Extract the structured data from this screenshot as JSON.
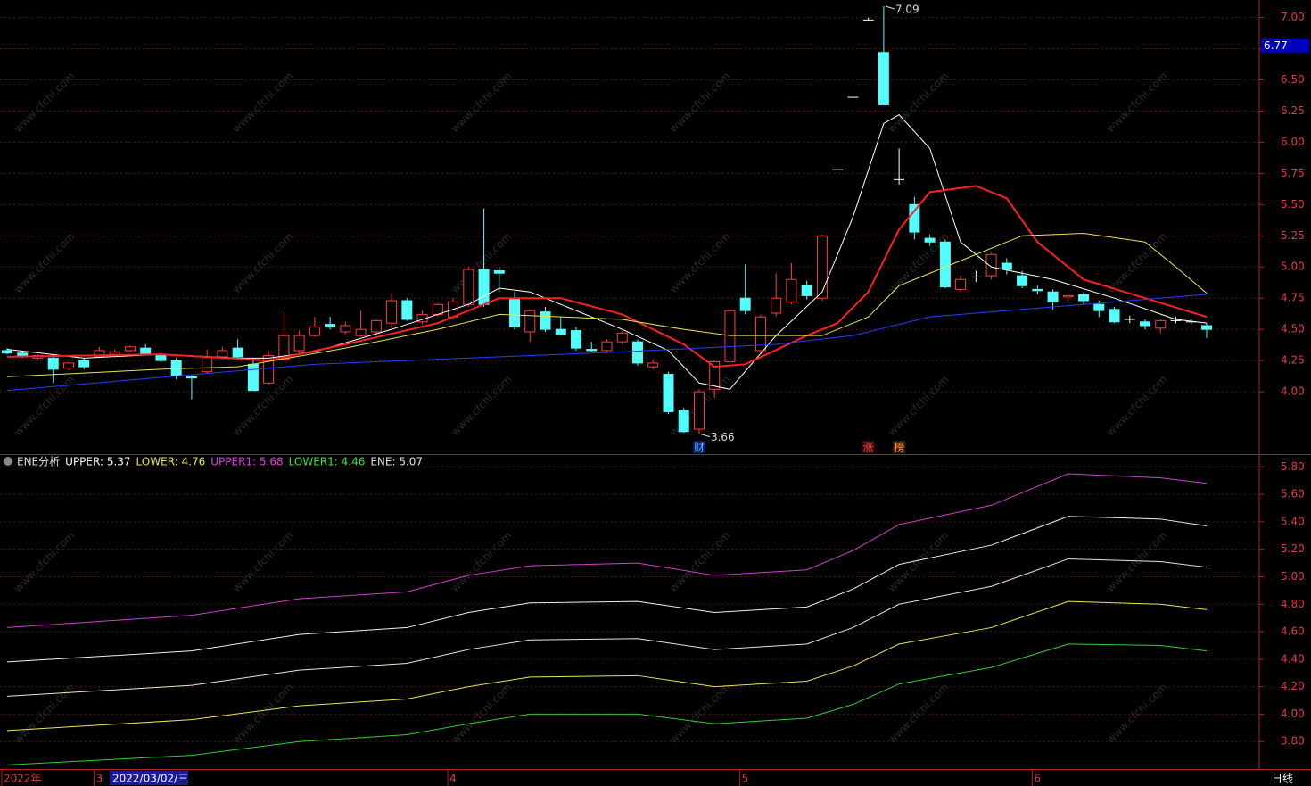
{
  "chart_data": [
    {
      "type": "candlestick",
      "ylim": [
        3.5,
        7.14
      ],
      "yticks": [
        {
          "value": 4,
          "label": "4.00"
        },
        {
          "value": 4.25,
          "label": "4.25"
        },
        {
          "value": 4.5,
          "label": "4.50"
        },
        {
          "value": 4.75,
          "label": "4.75"
        },
        {
          "value": 5,
          "label": "5.00"
        },
        {
          "value": 5.25,
          "label": "5.25"
        },
        {
          "value": 5.5,
          "label": "5.50"
        },
        {
          "value": 5.75,
          "label": "5.75"
        },
        {
          "value": 6,
          "label": "6.00"
        },
        {
          "value": 6.25,
          "label": "6.25"
        },
        {
          "value": 6.5,
          "label": "6.50"
        },
        {
          "value": 6.75,
          "label": "6.75"
        },
        {
          "value": 7,
          "label": "7.00"
        }
      ],
      "grid": true,
      "up_color": "#ff3c3c",
      "down_color": "#54fcfc",
      "flat_color": "#ffffff",
      "open": [
        4.33,
        4.31,
        4.27,
        4.27,
        4.19,
        4.25,
        4.28,
        4.3,
        4.33,
        4.35,
        4.29,
        4.25,
        4.12,
        4.16,
        4.28,
        4.35,
        4.22,
        4.07,
        4.26,
        4.33,
        4.45,
        4.54,
        4.48,
        4.45,
        4.48,
        4.55,
        4.73,
        4.56,
        4.62,
        4.6,
        4.7,
        4.98,
        4.97,
        4.74,
        4.48,
        4.64,
        4.5,
        4.49,
        4.34,
        4.33,
        4.4,
        4.4,
        4.2,
        4.14,
        3.85,
        3.7,
        4.02,
        4.24,
        4.75,
        4.33,
        4.63,
        4.72,
        4.85,
        4.75,
        5.78,
        6.36,
        6.98,
        6.72,
        5.7,
        5.5,
        5.23,
        5.2,
        4.82,
        4.92,
        4.93,
        5.03,
        4.93,
        4.82,
        4.8,
        4.76,
        4.78,
        4.7,
        4.66,
        4.58,
        4.56,
        4.51,
        4.57,
        4.56,
        4.53
      ],
      "high": [
        4.35,
        4.33,
        4.3,
        4.28,
        4.24,
        4.27,
        4.36,
        4.34,
        4.37,
        4.38,
        4.31,
        4.27,
        4.13,
        4.34,
        4.36,
        4.42,
        4.27,
        4.33,
        4.64,
        4.49,
        4.6,
        4.6,
        4.56,
        4.65,
        4.58,
        4.79,
        4.75,
        4.65,
        4.71,
        4.75,
        5.0,
        5.47,
        5.0,
        4.8,
        4.66,
        4.68,
        4.6,
        4.52,
        4.4,
        4.42,
        4.49,
        4.42,
        4.26,
        4.16,
        3.87,
        4.02,
        4.25,
        4.65,
        5.02,
        4.62,
        4.95,
        5.03,
        4.89,
        5.26,
        5.78,
        6.36,
        7.0,
        7.09,
        5.95,
        5.56,
        5.26,
        5.22,
        4.93,
        4.97,
        5.11,
        5.07,
        4.97,
        4.85,
        4.82,
        4.79,
        4.8,
        4.73,
        4.68,
        4.61,
        4.58,
        4.58,
        4.6,
        4.58,
        4.55
      ],
      "low": [
        4.3,
        4.27,
        4.26,
        4.07,
        4.17,
        4.18,
        4.27,
        4.29,
        4.32,
        4.29,
        4.24,
        4.1,
        3.94,
        4.15,
        4.26,
        4.27,
        4.01,
        4.05,
        4.24,
        4.31,
        4.44,
        4.5,
        4.46,
        4.44,
        4.46,
        4.52,
        4.57,
        4.54,
        4.6,
        4.58,
        4.68,
        4.68,
        4.8,
        4.5,
        4.4,
        4.48,
        4.45,
        4.33,
        4.32,
        4.31,
        4.38,
        4.21,
        4.18,
        3.82,
        3.67,
        3.66,
        3.95,
        4.22,
        4.62,
        4.3,
        4.6,
        4.7,
        4.74,
        4.73,
        5.78,
        6.36,
        6.98,
        6.3,
        5.66,
        5.22,
        5.17,
        4.83,
        4.8,
        4.88,
        4.9,
        4.94,
        4.83,
        4.78,
        4.66,
        4.73,
        4.7,
        4.6,
        4.55,
        4.55,
        4.5,
        4.47,
        4.55,
        4.54,
        4.43
      ],
      "close": [
        4.31,
        4.28,
        4.29,
        4.18,
        4.23,
        4.2,
        4.33,
        4.32,
        4.36,
        4.3,
        4.25,
        4.13,
        4.11,
        4.28,
        4.33,
        4.28,
        4.01,
        4.29,
        4.45,
        4.45,
        4.52,
        4.52,
        4.53,
        4.5,
        4.57,
        4.73,
        4.58,
        4.62,
        4.7,
        4.72,
        4.98,
        4.7,
        4.95,
        4.52,
        4.65,
        4.5,
        4.46,
        4.35,
        4.33,
        4.4,
        4.47,
        4.23,
        4.23,
        3.84,
        3.68,
        4.0,
        4.24,
        4.65,
        4.65,
        4.6,
        4.75,
        4.9,
        4.77,
        5.25,
        5.78,
        6.36,
        6.98,
        6.3,
        5.7,
        5.28,
        5.2,
        4.84,
        4.9,
        4.92,
        5.1,
        4.98,
        4.85,
        4.81,
        4.72,
        4.77,
        4.73,
        4.65,
        4.56,
        4.58,
        4.53,
        4.57,
        4.57,
        4.56,
        4.5
      ],
      "series": [
        {
          "color": "#ffffff",
          "width": 1,
          "x": [
            0,
            5,
            10,
            15,
            17,
            20,
            25,
            30,
            32,
            34,
            36,
            40,
            43,
            45,
            47,
            50,
            53,
            55,
            57,
            58,
            60,
            62,
            64,
            68,
            72,
            76,
            78
          ],
          "values": [
            4.34,
            4.27,
            4.3,
            4.27,
            4.27,
            4.32,
            4.5,
            4.7,
            4.83,
            4.8,
            4.7,
            4.5,
            4.33,
            4.07,
            4.02,
            4.45,
            4.8,
            5.4,
            6.15,
            6.22,
            5.95,
            5.2,
            5.0,
            4.9,
            4.75,
            4.58,
            4.55
          ]
        },
        {
          "color": "#ff2020",
          "width": 2,
          "x": [
            0,
            10,
            17,
            22,
            28,
            32,
            36,
            40,
            44,
            46,
            48,
            52,
            54,
            56,
            58,
            60,
            63,
            65,
            67,
            70,
            74,
            78
          ],
          "values": [
            4.28,
            4.3,
            4.25,
            4.38,
            4.55,
            4.75,
            4.75,
            4.62,
            4.38,
            4.2,
            4.22,
            4.45,
            4.55,
            4.8,
            5.3,
            5.6,
            5.65,
            5.55,
            5.2,
            4.9,
            4.75,
            4.6
          ]
        },
        {
          "color": "#e6e650",
          "width": 1,
          "x": [
            0,
            10,
            15,
            22,
            28,
            32,
            36,
            40,
            44,
            47,
            50,
            53,
            56,
            58,
            62,
            66,
            70,
            74,
            76,
            78
          ],
          "values": [
            4.12,
            4.18,
            4.2,
            4.35,
            4.5,
            4.62,
            4.6,
            4.58,
            4.5,
            4.45,
            4.45,
            4.45,
            4.6,
            4.85,
            5.05,
            5.25,
            5.27,
            5.2,
            5.0,
            4.79
          ]
        },
        {
          "color": "#2040ff",
          "width": 1,
          "x": [
            0,
            20,
            40,
            50,
            55,
            60,
            70,
            78
          ],
          "values": [
            4.01,
            4.22,
            4.32,
            4.38,
            4.45,
            4.6,
            4.7,
            4.78
          ]
        }
      ],
      "annotations": [
        {
          "x": 57,
          "y": 7.09
        },
        {
          "x": 45,
          "y": 3.66
        }
      ],
      "events": [
        {
          "text": "财",
          "x": 45,
          "color": "#5ab4ff",
          "bg": "#0a1a6a"
        },
        {
          "text": "涨",
          "x": 56,
          "color": "#ff5050",
          "bg": "#3a0a0a"
        },
        {
          "text": "榜",
          "x": 58,
          "color": "#ffa040",
          "bg": "#3a1a0a"
        }
      ],
      "price_tag": 6.77,
      "xticks": [
        {
          "value": 0,
          "label": "2022年"
        },
        {
          "value": 6,
          "label": "3"
        },
        {
          "value": 29,
          "label": "4"
        },
        {
          "value": 48,
          "label": "5"
        },
        {
          "value": 67,
          "label": "6"
        }
      ],
      "cursor_label": "2022/03/02/三",
      "period": "日线",
      "watermark": "www.cfchi.com"
    },
    {
      "type": "line",
      "title": "ENE分析",
      "ylim": [
        3.6,
        5.88
      ],
      "yticks": [
        {
          "value": 3.8,
          "label": "3.80"
        },
        {
          "value": 4,
          "label": "4.00"
        },
        {
          "value": 4.2,
          "label": "4.20"
        },
        {
          "value": 4.4,
          "label": "4.40"
        },
        {
          "value": 4.6,
          "label": "4.60"
        },
        {
          "value": 4.8,
          "label": "4.80"
        },
        {
          "value": 5,
          "label": "5.00"
        },
        {
          "value": 5.2,
          "label": "5.20"
        },
        {
          "value": 5.4,
          "label": "5.40"
        },
        {
          "value": 5.6,
          "label": "5.60"
        },
        {
          "value": 5.8,
          "label": "5.80"
        }
      ],
      "grid": true,
      "legend": [
        {
          "text": "UPPER: 5.37",
          "color": "#ffffff"
        },
        {
          "text": "LOWER: 4.76",
          "color": "#e6e650"
        },
        {
          "text": "UPPER1: 5.68",
          "color": "#e040e0"
        },
        {
          "text": "LOWER1: 4.46",
          "color": "#40e040"
        },
        {
          "text": "ENE: 5.07",
          "color": "#e0e0e0"
        }
      ],
      "series": [
        {
          "color": "#d040d0",
          "x": [
            0,
            12,
            19,
            26,
            30,
            34,
            41,
            46,
            52,
            55,
            58,
            64,
            69,
            75,
            78
          ],
          "values": [
            4.63,
            4.72,
            4.84,
            4.89,
            5.01,
            5.08,
            5.1,
            5.01,
            5.05,
            5.19,
            5.38,
            5.52,
            5.75,
            5.72,
            5.68
          ]
        },
        {
          "color": "#f0f0f0",
          "x": [
            0,
            12,
            19,
            26,
            30,
            34,
            41,
            46,
            52,
            55,
            58,
            64,
            69,
            75,
            78
          ],
          "values": [
            4.38,
            4.46,
            4.58,
            4.63,
            4.74,
            4.81,
            4.82,
            4.74,
            4.78,
            4.91,
            5.09,
            5.23,
            5.44,
            5.42,
            5.37
          ]
        },
        {
          "color": "#e8e8c8",
          "x": [
            0,
            12,
            19,
            26,
            30,
            34,
            41,
            46,
            52,
            55,
            58,
            64,
            69,
            75,
            78
          ],
          "values": [
            4.13,
            4.21,
            4.32,
            4.37,
            4.47,
            4.54,
            4.55,
            4.47,
            4.51,
            4.63,
            4.8,
            4.93,
            5.13,
            5.11,
            5.07
          ]
        },
        {
          "color": "#e6e650",
          "x": [
            0,
            12,
            19,
            26,
            30,
            34,
            41,
            46,
            52,
            55,
            58,
            64,
            69,
            75,
            78
          ],
          "values": [
            3.88,
            3.96,
            4.06,
            4.11,
            4.2,
            4.27,
            4.28,
            4.2,
            4.24,
            4.35,
            4.51,
            4.63,
            4.82,
            4.8,
            4.76
          ]
        },
        {
          "color": "#30d030",
          "x": [
            0,
            12,
            19,
            26,
            30,
            34,
            41,
            46,
            52,
            55,
            58,
            64,
            69,
            75,
            78
          ],
          "values": [
            3.63,
            3.7,
            3.8,
            3.85,
            3.93,
            4.0,
            4.0,
            3.93,
            3.97,
            4.07,
            4.22,
            4.34,
            4.51,
            4.5,
            4.46
          ]
        }
      ]
    }
  ]
}
